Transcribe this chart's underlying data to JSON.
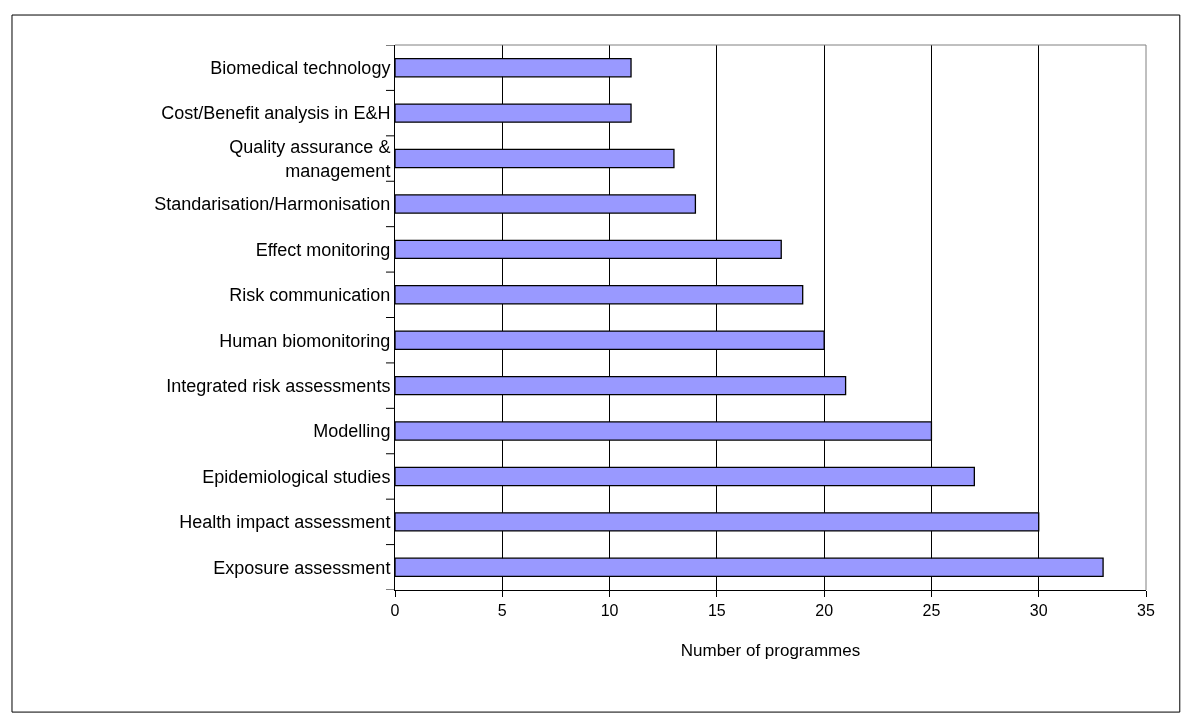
{
  "chart_data": {
    "type": "bar",
    "orientation": "horizontal",
    "xlabel": "Number of programmes",
    "categories": [
      "Biomedical technology",
      "Cost/Benefit analysis in E&H",
      "Quality assurance &\nmanagement",
      "Standarisation/Harmonisation",
      "Effect monitoring",
      "Risk communication",
      "Human biomonitoring",
      "Integrated risk assessments",
      "Modelling",
      "Epidemiological studies",
      "Health impact assessment",
      "Exposure assessment"
    ],
    "values": [
      11,
      11,
      13,
      14,
      18,
      19,
      20,
      21,
      25,
      27,
      30,
      33
    ],
    "color": "#9999ff",
    "xlim": [
      0,
      35
    ],
    "xticks": [
      0,
      5,
      10,
      15,
      20,
      25,
      30,
      35
    ],
    "grid": "x"
  }
}
